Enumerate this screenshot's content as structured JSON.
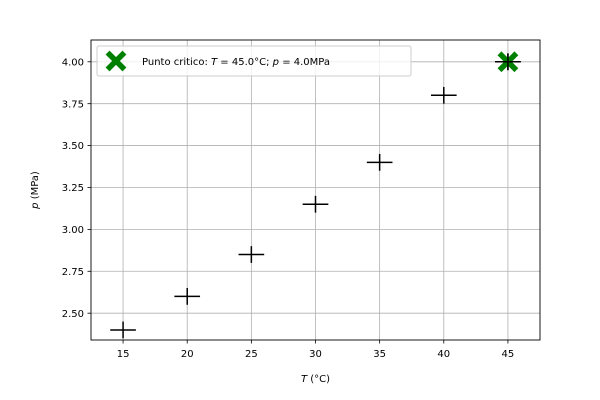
{
  "chart_data": {
    "type": "scatter",
    "xlabel": {
      "var": "T",
      "unit": " (°C)"
    },
    "ylabel": {
      "var": "p",
      "unit": " (MPa)"
    },
    "xlim": [
      12.5,
      47.5
    ],
    "ylim": [
      2.34,
      4.13
    ],
    "x_ticks": [
      15,
      20,
      25,
      30,
      35,
      40,
      45
    ],
    "y_ticks": [
      2.5,
      2.75,
      3.0,
      3.25,
      3.5,
      3.75,
      4.0
    ],
    "y_tick_labels": [
      "2.50",
      "2.75",
      "3.00",
      "3.25",
      "3.50",
      "3.75",
      "4.00"
    ],
    "grid": true,
    "series": [
      {
        "marker": "plus-with-error-bars",
        "color": "#000000",
        "x": [
          15,
          20,
          25,
          30,
          35,
          40,
          45
        ],
        "y": [
          2.4,
          2.6,
          2.85,
          3.15,
          3.4,
          3.8,
          4.0
        ],
        "x_err": 1,
        "y_err": 0.05
      },
      {
        "name": "Punto critico: T = 45.0°C; p = 4.0MPa",
        "marker": "X",
        "color": "#008000",
        "x": [
          45
        ],
        "y": [
          4.0
        ]
      }
    ],
    "legend": {
      "placement": "top-left",
      "parts": [
        {
          "text": "Punto critico: ",
          "italic": false
        },
        {
          "text": "T",
          "italic": true
        },
        {
          "text": " = 45.0°C; ",
          "italic": false
        },
        {
          "text": "p",
          "italic": true
        },
        {
          "text": " = 4.0MPa",
          "italic": false
        }
      ]
    }
  }
}
